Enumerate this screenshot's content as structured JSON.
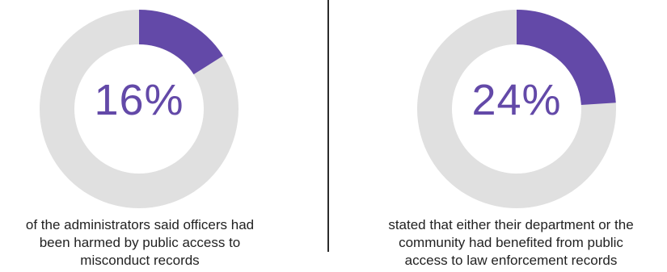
{
  "colors": {
    "accent": "#6349a8",
    "track": "#e0e0e0",
    "text": "#222222"
  },
  "chart_data": [
    {
      "type": "pie",
      "subtype": "donut",
      "value_percent": 16,
      "label": "16%",
      "caption": "of the administrators said officers had been harmed  by public access to misconduct records",
      "caption_lines": [
        "of the administrators said officers had",
        "been harmed  by public access to",
        "misconduct records"
      ]
    },
    {
      "type": "pie",
      "subtype": "donut",
      "value_percent": 24,
      "label": "24%",
      "caption": "stated that either their department or the community had benefited from public access to law enforcement records",
      "caption_lines": [
        "stated that either their department or the",
        "community had benefited from public",
        "access to law enforcement records"
      ]
    }
  ]
}
